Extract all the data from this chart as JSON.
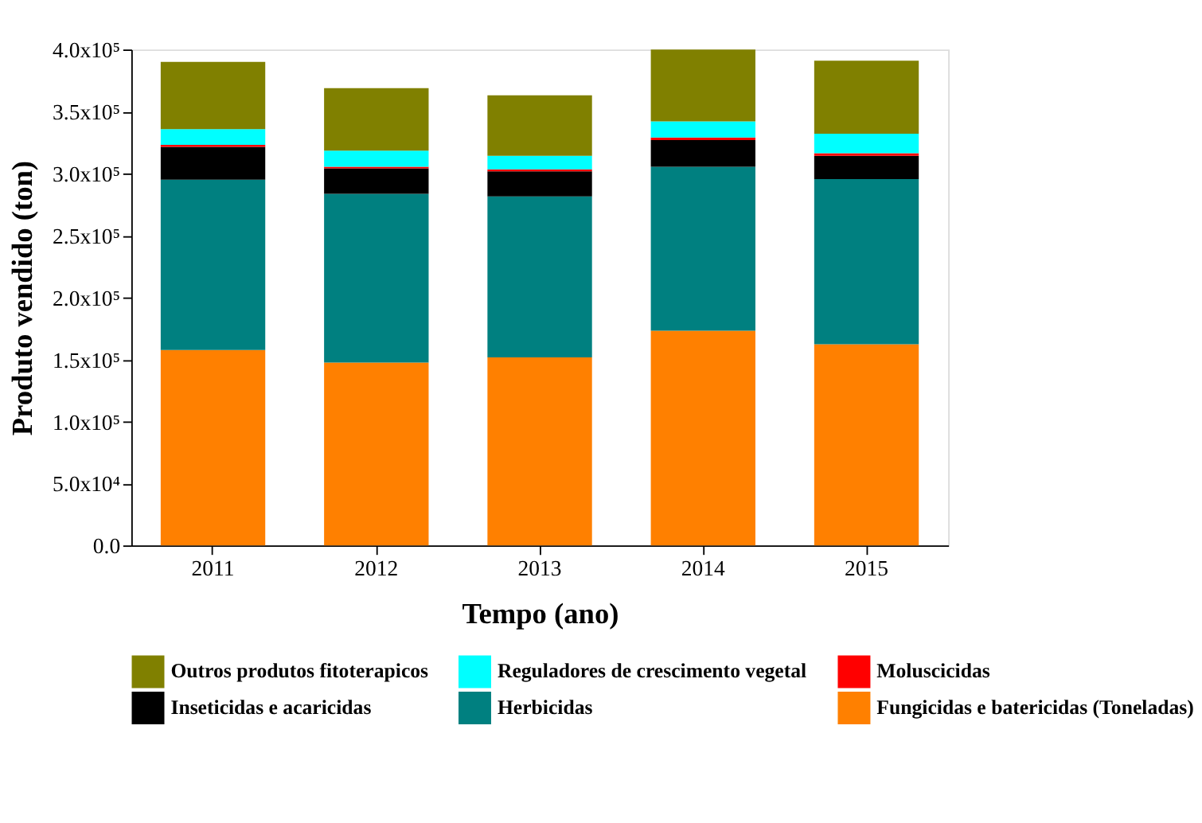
{
  "chart_data": {
    "type": "bar",
    "stacked": true,
    "xlabel": "Tempo (ano)",
    "ylabel": "Produto vendido (ton)",
    "categories": [
      "2011",
      "2012",
      "2013",
      "2014",
      "2015"
    ],
    "series": [
      {
        "name": "Fungicidas e batericidas (Toneladas)",
        "color": "#ff8000",
        "values": [
          157600,
          147500,
          151700,
          173100,
          162200
        ]
      },
      {
        "name": "Herbicidas",
        "color": "#008080",
        "values": [
          137400,
          136100,
          129800,
          132400,
          133200
        ]
      },
      {
        "name": "Inseticidas e acaricidas",
        "color": "#000000",
        "values": [
          26400,
          20600,
          20200,
          21500,
          18900
        ]
      },
      {
        "name": "Moluscicidas",
        "color": "#ff0000",
        "values": [
          1700,
          1300,
          1700,
          2000,
          2100
        ]
      },
      {
        "name": "Reguladores de crescimento vegetal",
        "color": "#00ffff",
        "values": [
          12600,
          13000,
          10900,
          13000,
          15600
        ]
      },
      {
        "name": "Outros produtos fitoterapicos",
        "color": "#808000",
        "values": [
          54300,
          50400,
          48700,
          58000,
          59000
        ]
      }
    ],
    "ylim": [
      0,
      400000
    ],
    "yticks": [
      {
        "value": 0,
        "label": "0.0"
      },
      {
        "value": 50000,
        "label": "5.0x10⁴"
      },
      {
        "value": 100000,
        "label": "1.0x10⁵"
      },
      {
        "value": 150000,
        "label": "1.5x10⁵"
      },
      {
        "value": 200000,
        "label": "2.0x10⁵"
      },
      {
        "value": 250000,
        "label": "2.5x10⁵"
      },
      {
        "value": 300000,
        "label": "3.0x10⁵"
      },
      {
        "value": 350000,
        "label": "3.5x10⁵"
      },
      {
        "value": 400000,
        "label": "4.0x10⁵"
      }
    ],
    "grid": false,
    "legend": "bottom"
  }
}
